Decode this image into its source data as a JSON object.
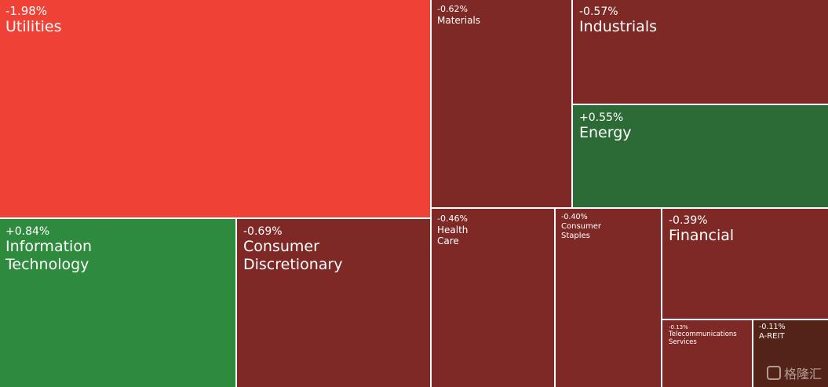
{
  "chart_data": {
    "type": "treemap",
    "colors": {
      "strong_down": "#ef4136",
      "down": "#7f2927",
      "deep_down": "#532317",
      "up": "#2e8b3e",
      "up_soft": "#2c6a36"
    },
    "sectors": [
      {
        "name": "Utilities",
        "change": "-1.98%",
        "color": "strong_down"
      },
      {
        "name": "Information\nTechnology",
        "change": "+0.84%",
        "color": "up"
      },
      {
        "name": "Consumer\nDiscretionary",
        "change": "-0.69%",
        "color": "down"
      },
      {
        "name": "Materials",
        "change": "-0.62%",
        "color": "down"
      },
      {
        "name": "Industrials",
        "change": "-0.57%",
        "color": "down"
      },
      {
        "name": "Energy",
        "change": "+0.55%",
        "color": "up_soft"
      },
      {
        "name": "Health\nCare",
        "change": "-0.46%",
        "color": "down"
      },
      {
        "name": "Consumer\nStaples",
        "change": "-0.40%",
        "color": "down"
      },
      {
        "name": "Financial",
        "change": "-0.39%",
        "color": "down"
      },
      {
        "name": "Telecommunications\nServices",
        "change": "-0.13%",
        "color": "down"
      },
      {
        "name": "A-REIT",
        "change": "-0.11%",
        "color": "deep_down"
      }
    ]
  },
  "watermark": {
    "text": "格隆汇",
    "icon": "gelonghui-logo-icon"
  }
}
